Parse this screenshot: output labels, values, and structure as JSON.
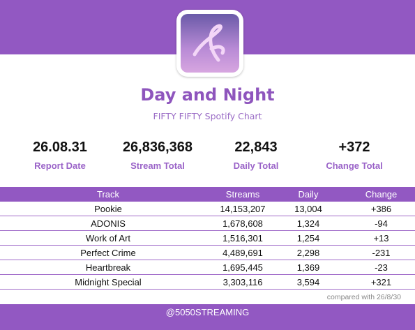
{
  "header": {
    "title": "Day and Night",
    "subtitle": "FIFTY FIFTY Spotify Chart"
  },
  "stats": [
    {
      "value": "26.08.31",
      "label": "Report Date"
    },
    {
      "value": "26,836,368",
      "label": "Stream Total"
    },
    {
      "value": "22,843",
      "label": "Daily Total"
    },
    {
      "value": "+372",
      "label": "Change Total"
    }
  ],
  "table": {
    "columns": [
      "Track",
      "Streams",
      "Daily",
      "Change"
    ],
    "rows": [
      [
        "Pookie",
        "14,153,207",
        "13,004",
        "+386"
      ],
      [
        "ADONIS",
        "1,678,608",
        "1,324",
        "-94"
      ],
      [
        "Work of Art",
        "1,516,301",
        "1,254",
        "+13"
      ],
      [
        "Perfect Crime",
        "4,489,691",
        "2,298",
        "-231"
      ],
      [
        "Heartbreak",
        "1,695,445",
        "1,369",
        "-23"
      ],
      [
        "Midnight Special",
        "3,303,116",
        "3,594",
        "+321"
      ]
    ]
  },
  "note": "compared with 26/8/30",
  "footer": "@5050STREAMING"
}
